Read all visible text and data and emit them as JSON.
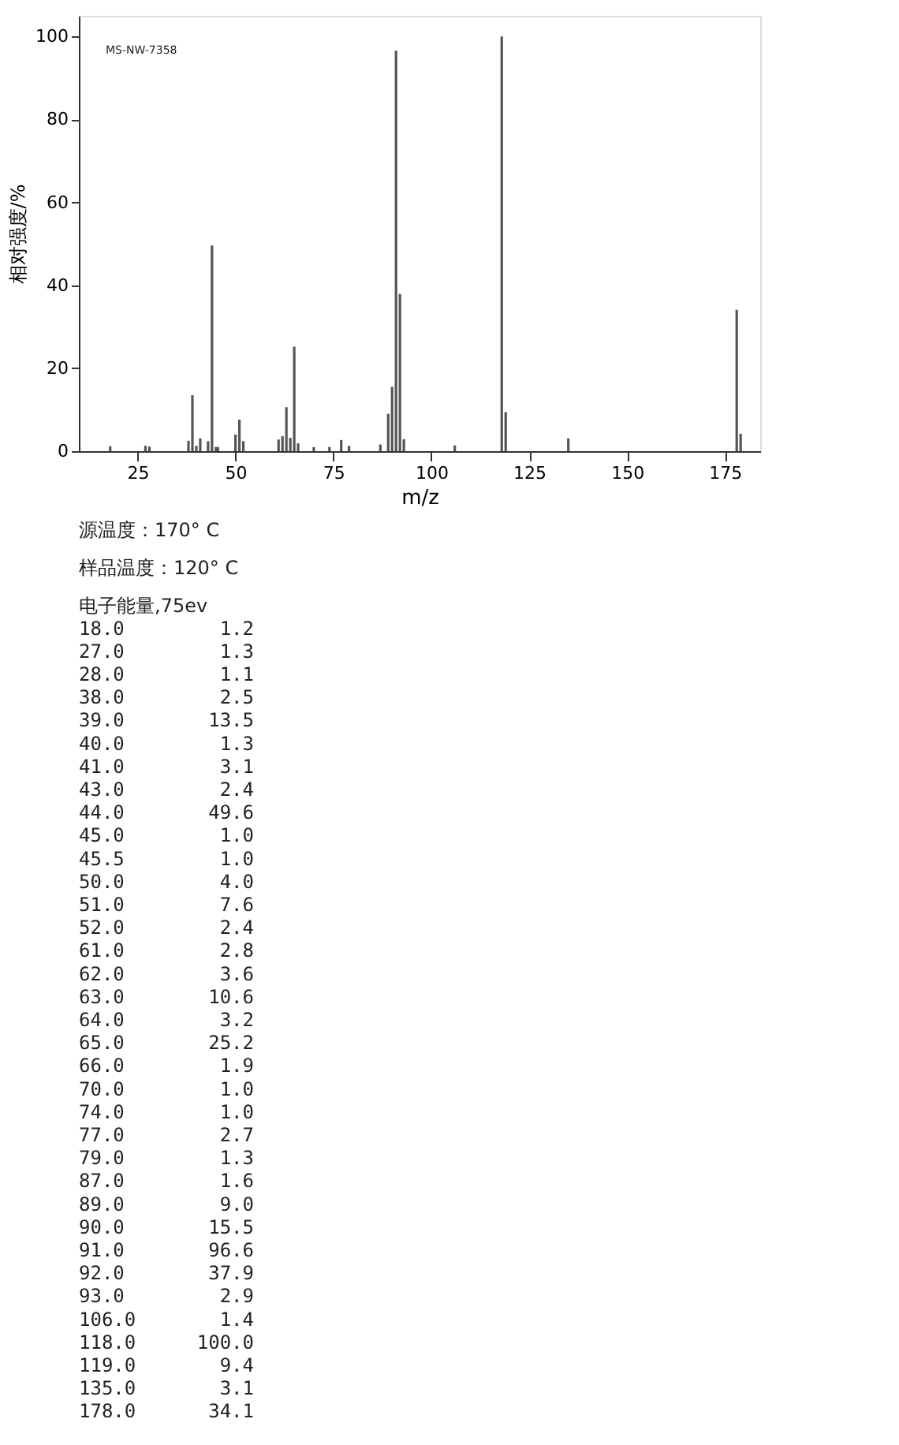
{
  "chart_data": [
    {
      "type": "bar",
      "xlabel": "m/z",
      "ylabel": "相对强度/%",
      "x": [
        18.0,
        27.0,
        28.0,
        38.0,
        39.0,
        40.0,
        41.0,
        43.0,
        44.0,
        45.0,
        45.5,
        50.0,
        51.0,
        52.0,
        61.0,
        62.0,
        63.0,
        64.0,
        65.0,
        66.0,
        70.0,
        74.0,
        77.0,
        79.0,
        87.0,
        89.0,
        90.0,
        91.0,
        92.0,
        93.0,
        106.0,
        118.0,
        119.0,
        135.0,
        178.0,
        179.0
      ],
      "values": [
        1.2,
        1.3,
        1.1,
        2.5,
        13.5,
        1.3,
        3.1,
        2.4,
        49.6,
        1.0,
        1.0,
        4.0,
        7.6,
        2.4,
        2.8,
        3.6,
        10.6,
        3.2,
        25.2,
        1.9,
        1.0,
        1.0,
        2.7,
        1.3,
        1.6,
        9.0,
        15.5,
        96.6,
        37.9,
        2.9,
        1.4,
        100.0,
        9.4,
        3.1,
        34.1,
        4.2
      ],
      "color": "#555555",
      "xlim": [
        10,
        184
      ],
      "xticks": [
        25,
        50,
        75,
        100,
        125,
        150,
        175
      ],
      "ylim": [
        0,
        105
      ],
      "yticks": [
        0,
        20,
        40,
        60,
        80,
        100
      ],
      "grid": false,
      "annotations": [
        "MS-NW-7358",
        "源温度：170° C",
        "样品温度：120° C",
        "电子能量,75ev"
      ]
    },
    {
      "type": "other",
      "value_labels": [
        "1.2",
        "1.3",
        "1.1",
        "2.5",
        "13.5",
        "1.3",
        "3.1",
        "2.4",
        "49.6",
        "1.0",
        "1.0",
        "4.0",
        "7.6",
        "2.4",
        "2.8",
        "3.6",
        "10.6",
        "3.2",
        "25.2",
        "1.9",
        "1.0",
        "1.0",
        "2.7",
        "1.3",
        "1.6",
        "9.0",
        "15.5",
        "96.6",
        "37.9",
        "2.9",
        "1.4",
        "100.0",
        "9.4",
        "3.1",
        "34.1"
      ],
      "categories": [
        "18.0",
        "27.0",
        "28.0",
        "38.0",
        "39.0",
        "40.0",
        "41.0",
        "43.0",
        "44.0",
        "45.0",
        "45.5",
        "50.0",
        "51.0",
        "52.0",
        "61.0",
        "62.0",
        "63.0",
        "64.0",
        "65.0",
        "66.0",
        "70.0",
        "74.0",
        "77.0",
        "79.0",
        "87.0",
        "89.0",
        "90.0",
        "91.0",
        "92.0",
        "93.0",
        "106.0",
        "118.0",
        "119.0",
        "135.0",
        "178.0"
      ],
      "values": [
        1.2,
        1.3,
        1.1,
        2.5,
        13.5,
        1.3,
        3.1,
        2.4,
        49.6,
        1.0,
        1.0,
        4.0,
        7.6,
        2.4,
        2.8,
        3.6,
        10.6,
        3.2,
        25.2,
        1.9,
        1.0,
        1.0,
        2.7,
        1.3,
        1.6,
        9.0,
        15.5,
        96.6,
        37.9,
        2.9,
        1.4,
        100.0,
        9.4,
        3.1,
        34.1
      ]
    }
  ]
}
